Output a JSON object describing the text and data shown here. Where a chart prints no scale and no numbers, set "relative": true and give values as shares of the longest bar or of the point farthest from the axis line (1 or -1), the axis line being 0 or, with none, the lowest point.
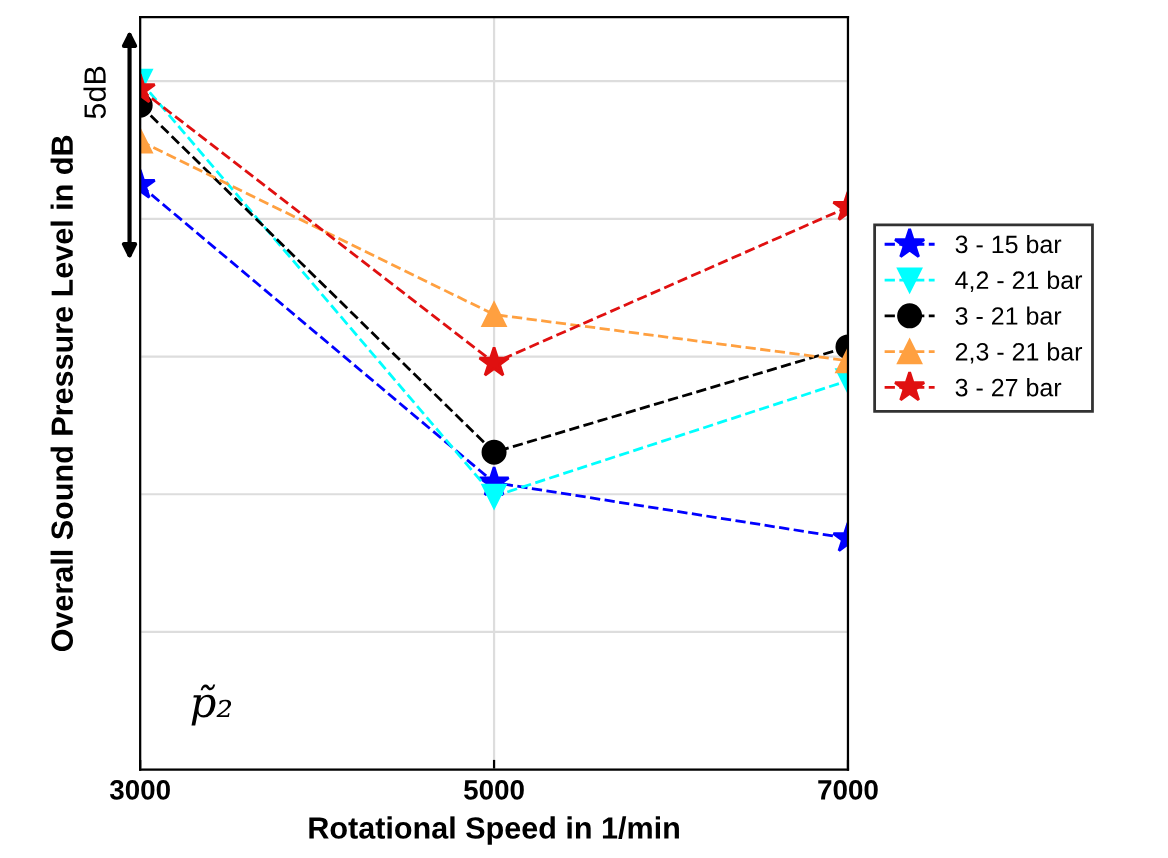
{
  "chart_data": {
    "type": "line",
    "relative": true,
    "xlabel": "Rotational Speed in 1/min",
    "ylabel": "Overall Sound Pressure Level in dB",
    "x": [
      3000,
      5000,
      7000
    ],
    "xlim": [
      3000,
      7000
    ],
    "xticks": [
      3000,
      5000,
      7000
    ],
    "series": [
      {
        "name": "3 - 15 bar",
        "color": "#0000ff",
        "marker": "star",
        "values": [
          0.849,
          0.417,
          0.336
        ]
      },
      {
        "name": "4,2 - 21 bar",
        "color": "#00ffff",
        "marker": "triangle_down",
        "values": [
          1.0,
          0.397,
          0.565
        ]
      },
      {
        "name": "3 - 21 bar",
        "color": "#000000",
        "marker": "circle",
        "values": [
          0.965,
          0.461,
          0.614
        ]
      },
      {
        "name": "2,3 - 21 bar",
        "color": "#ffa040",
        "marker": "triangle",
        "values": [
          0.913,
          0.661,
          0.594
        ]
      },
      {
        "name": "3 - 27 bar",
        "color": "#e01010",
        "marker": "star",
        "values": [
          0.988,
          0.591,
          0.817
        ]
      }
    ],
    "line_style": "dashed",
    "grid": true,
    "legend": "right",
    "tick_labels": "x",
    "annotations": [
      "5dB",
      "p̃₂"
    ]
  }
}
